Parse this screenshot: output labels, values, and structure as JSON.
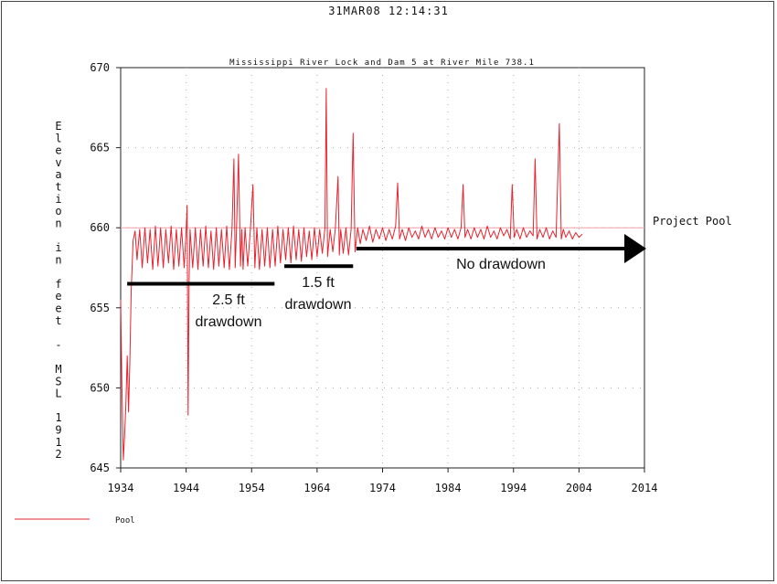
{
  "timestamp": "31MAR08  12:14:31",
  "chart_data": {
    "type": "line",
    "title": "Mississippi River Lock and Dam 5 at River Mile 738.1",
    "ylabel": "Elevation in feet - MSL 1912",
    "xlabel": "",
    "xlim": [
      1934,
      2014
    ],
    "ylim": [
      645,
      670
    ],
    "x_ticks": [
      "1934",
      "1944",
      "1954",
      "1964",
      "1974",
      "1984",
      "1994",
      "2004",
      "2014"
    ],
    "y_ticks": [
      "670",
      "665",
      "660",
      "655",
      "650",
      "645"
    ],
    "grid": true,
    "legend": {
      "position": "bottom-left",
      "entries": [
        {
          "name": "Pool",
          "color": "#e8222e"
        }
      ]
    },
    "series": [
      {
        "name": "Pool",
        "color": "#e8222e",
        "x": [
          1934.0,
          1934.2,
          1934.4,
          1934.6,
          1934.8,
          1935.0,
          1935.2,
          1935.4,
          1935.6,
          1935.9,
          1936.2,
          1936.5,
          1936.9,
          1937.3,
          1937.7,
          1938.1,
          1938.5,
          1938.9,
          1939.3,
          1939.7,
          1940.1,
          1940.5,
          1940.9,
          1941.3,
          1941.7,
          1942.1,
          1942.5,
          1942.9,
          1943.3,
          1943.7,
          1944.0,
          1944.15,
          1944.3,
          1944.45,
          1944.6,
          1945.0,
          1945.4,
          1945.8,
          1946.2,
          1946.6,
          1947.0,
          1947.4,
          1947.8,
          1948.2,
          1948.6,
          1949.0,
          1949.4,
          1949.8,
          1950.2,
          1950.6,
          1951.0,
          1951.3,
          1951.5,
          1951.7,
          1952.0,
          1952.3,
          1952.5,
          1952.7,
          1953.0,
          1953.4,
          1953.8,
          1954.2,
          1954.5,
          1954.8,
          1955.2,
          1955.6,
          1956.0,
          1956.4,
          1956.8,
          1957.2,
          1957.6,
          1958.0,
          1958.4,
          1958.8,
          1959.2,
          1959.6,
          1960.0,
          1960.4,
          1960.8,
          1961.2,
          1961.6,
          1962.0,
          1962.4,
          1962.8,
          1963.2,
          1963.6,
          1964.0,
          1964.4,
          1964.8,
          1965.2,
          1965.4,
          1965.6,
          1966.0,
          1966.4,
          1966.8,
          1967.2,
          1967.4,
          1967.6,
          1968.0,
          1968.4,
          1968.8,
          1969.2,
          1969.5,
          1969.8,
          1970.2,
          1970.6,
          1971.0,
          1971.5,
          1972.0,
          1972.5,
          1973.0,
          1973.5,
          1974.0,
          1974.5,
          1975.0,
          1975.5,
          1976.0,
          1976.3,
          1976.6,
          1977.0,
          1977.5,
          1978.0,
          1978.5,
          1979.0,
          1979.5,
          1980.0,
          1980.5,
          1981.0,
          1981.5,
          1982.0,
          1982.5,
          1983.0,
          1983.5,
          1984.0,
          1984.5,
          1985.0,
          1985.5,
          1986.0,
          1986.3,
          1986.6,
          1987.0,
          1987.5,
          1988.0,
          1988.5,
          1989.0,
          1989.5,
          1990.0,
          1990.5,
          1991.0,
          1991.5,
          1992.0,
          1992.5,
          1993.0,
          1993.5,
          1993.8,
          1994.1,
          1994.5,
          1995.0,
          1995.5,
          1996.0,
          1996.5,
          1997.0,
          1997.3,
          1997.6,
          1998.0,
          1998.5,
          1999.0,
          1999.5,
          2000.0,
          2000.5,
          2001.0,
          2001.3,
          2001.6,
          2002.0,
          2002.5,
          2003.0,
          2003.5,
          2004.0,
          2004.5
        ],
        "y": [
          655.5,
          650.0,
          645.5,
          647.0,
          649.0,
          652.0,
          648.5,
          651.5,
          656.0,
          659.2,
          659.8,
          658.0,
          659.9,
          657.5,
          660.0,
          657.8,
          659.9,
          657.4,
          660.1,
          657.6,
          660.0,
          657.5,
          659.9,
          657.8,
          660.1,
          657.4,
          659.9,
          657.6,
          660.0,
          657.5,
          659.8,
          661.4,
          648.3,
          656.5,
          659.9,
          657.5,
          660.0,
          657.4,
          659.9,
          657.6,
          660.1,
          657.5,
          659.8,
          657.4,
          660.0,
          657.6,
          659.9,
          657.5,
          660.1,
          657.4,
          659.9,
          664.3,
          657.5,
          660.0,
          664.6,
          657.6,
          659.9,
          657.4,
          660.0,
          657.6,
          659.8,
          662.7,
          657.5,
          660.0,
          657.4,
          659.9,
          657.6,
          660.0,
          657.5,
          659.9,
          657.6,
          660.1,
          657.8,
          659.9,
          658.0,
          660.0,
          657.8,
          660.1,
          658.0,
          659.9,
          657.9,
          660.0,
          658.2,
          659.8,
          658.0,
          660.0,
          658.2,
          659.9,
          658.4,
          660.0,
          668.7,
          658.2,
          659.9,
          658.5,
          660.0,
          663.2,
          658.3,
          659.9,
          658.4,
          660.0,
          658.3,
          659.9,
          665.9,
          658.5,
          660.0,
          659.0,
          659.9,
          659.2,
          660.1,
          659.1,
          659.9,
          659.3,
          660.0,
          659.2,
          659.9,
          659.3,
          660.1,
          662.8,
          659.3,
          659.9,
          659.2,
          660.0,
          659.4,
          659.8,
          659.3,
          660.1,
          659.4,
          659.9,
          659.3,
          660.0,
          659.4,
          659.8,
          659.3,
          660.0,
          659.4,
          659.9,
          659.3,
          660.0,
          662.7,
          659.4,
          659.9,
          659.3,
          660.0,
          659.4,
          659.9,
          659.3,
          660.1,
          659.4,
          659.8,
          659.3,
          660.0,
          659.5,
          659.9,
          659.3,
          662.7,
          659.4,
          659.9,
          659.3,
          660.0,
          659.4,
          659.8,
          659.5,
          664.3,
          659.3,
          659.9,
          659.4,
          660.0,
          659.3,
          659.8,
          659.4,
          666.5,
          659.3,
          659.9,
          659.4,
          659.8,
          659.3,
          659.7,
          659.4,
          659.6
        ]
      }
    ],
    "reference_lines": [
      {
        "y": 660,
        "label": "Project Pool",
        "color": "#f2a0a6"
      }
    ],
    "annotations": [
      {
        "x_start": 1935,
        "x_end": 1957.5,
        "y": 656.5,
        "lines": [
          "2.5 ft",
          "drawdown"
        ],
        "arrow": false
      },
      {
        "x_start": 1959,
        "x_end": 1969.5,
        "y": 657.6,
        "lines": [
          "1.5 ft",
          "drawdown"
        ],
        "arrow": false
      },
      {
        "x_start": 1970,
        "x_end": 2014,
        "y": 658.7,
        "lines": [
          "No drawdown"
        ],
        "arrow": true
      }
    ]
  }
}
